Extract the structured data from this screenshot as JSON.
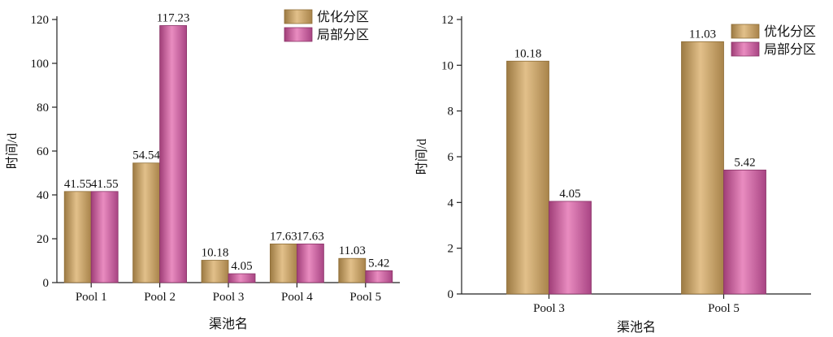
{
  "colors": {
    "optimized": "#C8A265",
    "optimized_edge": "#8F6E37",
    "local": "#C95A98",
    "local_edge": "#8A3467",
    "axis": "#222222"
  },
  "chart_data": [
    {
      "type": "bar",
      "categories": [
        "Pool 1",
        "Pool 2",
        "Pool 3",
        "Pool 4",
        "Pool 5"
      ],
      "series": [
        {
          "name": "优化分区",
          "values": [
            41.55,
            54.54,
            10.18,
            17.63,
            11.03
          ],
          "labels": [
            "41.55",
            "54.54",
            "10.18",
            "17.63",
            "11.03"
          ]
        },
        {
          "name": "局部分区",
          "values": [
            41.55,
            117.23,
            4.05,
            17.63,
            5.42
          ],
          "labels": [
            "41.55",
            "117.23",
            "4.05",
            "17.63",
            "5.42"
          ]
        }
      ],
      "xlabel": "渠池名",
      "ylabel": "时间/d",
      "ylim": [
        0,
        120
      ],
      "yticks": [
        0,
        20,
        40,
        60,
        80,
        100,
        120
      ],
      "legend": "top-right"
    },
    {
      "type": "bar",
      "categories": [
        "Pool 3",
        "Pool 5"
      ],
      "series": [
        {
          "name": "优化分区",
          "values": [
            10.18,
            11.03
          ],
          "labels": [
            "10.18",
            "11.03"
          ]
        },
        {
          "name": "局部分区",
          "values": [
            4.05,
            5.42
          ],
          "labels": [
            "4.05",
            "5.42"
          ]
        }
      ],
      "xlabel": "渠池名",
      "ylabel": "时间/d",
      "ylim": [
        0,
        12
      ],
      "yticks": [
        0,
        2,
        4,
        6,
        8,
        10,
        12
      ],
      "legend": "top-right"
    }
  ]
}
